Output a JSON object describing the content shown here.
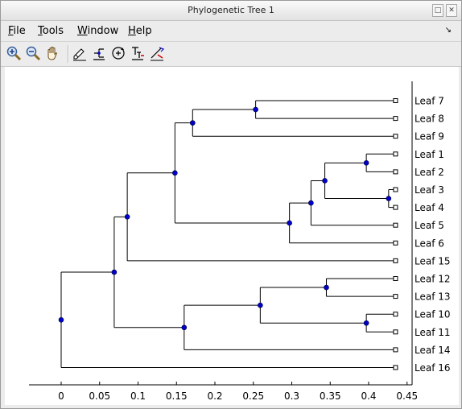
{
  "window": {
    "title": "Phylogenetic Tree 1",
    "controls": [
      "□",
      "✕"
    ]
  },
  "menu": [
    {
      "label": "File",
      "accel": "F",
      "rest": "ile"
    },
    {
      "label": "Tools",
      "accel": "T",
      "rest": "ools"
    },
    {
      "label": "Window",
      "accel": "W",
      "rest": "indow"
    },
    {
      "label": "Help",
      "accel": "H",
      "rest": "elp"
    }
  ],
  "toolbar": [
    "zoom-in-icon",
    "zoom-out-icon",
    "pan-hand-icon",
    "edit-tree-icon",
    "collapse-branch-icon",
    "rotate-branch-icon",
    "rename-icon",
    "prune-icon"
  ],
  "colors": {
    "node": "#0000cc",
    "branch": "#000000"
  },
  "chart_data": {
    "type": "dendrogram",
    "x_ticks": [
      "0",
      "0.05",
      "0.1",
      "0.15",
      "0.2",
      "0.25",
      "0.3",
      "0.35",
      "0.4",
      "0.45"
    ],
    "xlim": [
      -0.04,
      0.46
    ],
    "leaves": [
      "Leaf 7",
      "Leaf 8",
      "Leaf 9",
      "Leaf 1",
      "Leaf 2",
      "Leaf 3",
      "Leaf 4",
      "Leaf 5",
      "Leaf 6",
      "Leaf 15",
      "Leaf 12",
      "Leaf 13",
      "Leaf 10",
      "Leaf 11",
      "Leaf 14",
      "Leaf 16"
    ],
    "leaf_x": 0.435,
    "nodes": [
      {
        "id": "root",
        "x": 0.0,
        "children": [
          "n_top",
          "Leaf 16"
        ]
      },
      {
        "id": "n_top",
        "x": 0.069,
        "children": [
          "n_a",
          "n_b"
        ]
      },
      {
        "id": "n_a",
        "x": 0.086,
        "children": [
          "n_c",
          "Leaf 15"
        ]
      },
      {
        "id": "n_c",
        "x": 0.148,
        "children": [
          "n_d",
          "n_e"
        ]
      },
      {
        "id": "n_d",
        "x": 0.171,
        "children": [
          "n_78",
          "Leaf 9"
        ]
      },
      {
        "id": "n_78",
        "x": 0.253,
        "children": [
          "Leaf 7",
          "Leaf 8"
        ]
      },
      {
        "id": "n_e",
        "x": 0.297,
        "children": [
          "n_f",
          "Leaf 6"
        ]
      },
      {
        "id": "n_f",
        "x": 0.325,
        "children": [
          "n_g",
          "Leaf 5"
        ]
      },
      {
        "id": "n_g",
        "x": 0.343,
        "children": [
          "n_12",
          "n_34"
        ]
      },
      {
        "id": "n_12",
        "x": 0.397,
        "children": [
          "Leaf 1",
          "Leaf 2"
        ]
      },
      {
        "id": "n_34",
        "x": 0.426,
        "children": [
          "Leaf 3",
          "Leaf 4"
        ]
      },
      {
        "id": "n_b",
        "x": 0.16,
        "children": [
          "n_h",
          "Leaf 14"
        ]
      },
      {
        "id": "n_h",
        "x": 0.259,
        "children": [
          "n_1213",
          "n_1011"
        ]
      },
      {
        "id": "n_1213",
        "x": 0.345,
        "children": [
          "Leaf 12",
          "Leaf 13"
        ]
      },
      {
        "id": "n_1011",
        "x": 0.397,
        "children": [
          "Leaf 10",
          "Leaf 11"
        ]
      }
    ]
  }
}
